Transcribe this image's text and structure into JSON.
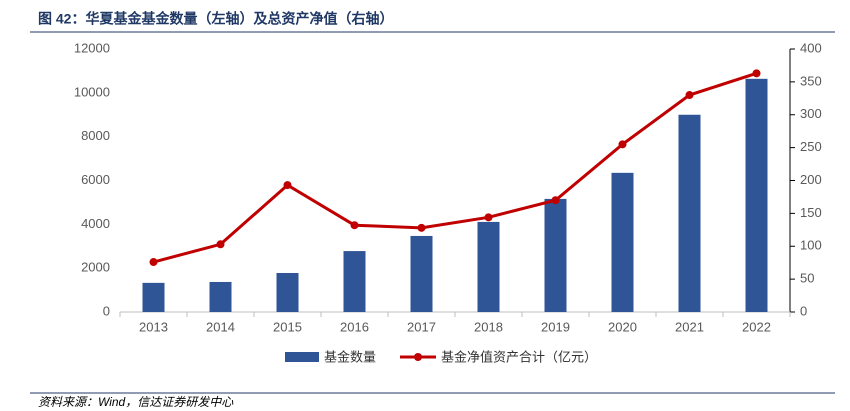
{
  "chart_data": {
    "type": "bar-line",
    "title": "图 42：华夏基金基金数量（左轴）及总资产净值（右轴）",
    "source": "资料来源：Wind，信达证券研发中心",
    "categories": [
      "2013",
      "2014",
      "2015",
      "2016",
      "2017",
      "2018",
      "2019",
      "2020",
      "2021",
      "2022"
    ],
    "series": [
      {
        "name": "基金数量",
        "color": "#2f5597",
        "type": "bar",
        "values": [
          1330,
          1370,
          1780,
          2780,
          3470,
          4110,
          5160,
          6350,
          9000,
          10640
        ]
      },
      {
        "name": "基金净值资产合计（亿元）",
        "color": "#c00000",
        "type": "line",
        "axis": "y2",
        "values": [
          76,
          103,
          193,
          132,
          128,
          144,
          170,
          255,
          330,
          363
        ]
      }
    ],
    "ylim": [
      0,
      12000
    ],
    "yticks": [
      0,
      2000,
      4000,
      6000,
      8000,
      10000,
      12000
    ],
    "y2lim": [
      0,
      400
    ],
    "y2ticks": [
      0,
      50,
      100,
      150,
      200,
      250,
      300,
      350,
      400
    ]
  }
}
